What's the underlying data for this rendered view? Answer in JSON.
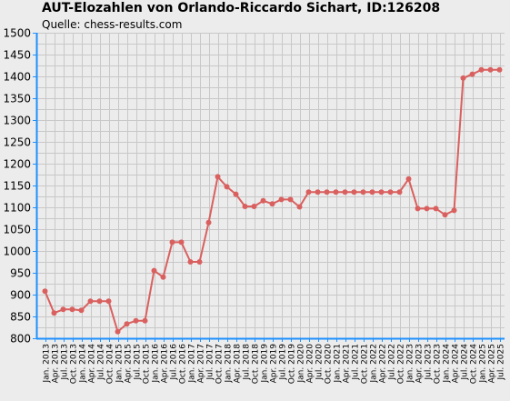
{
  "chart_data": {
    "type": "line",
    "title": "AUT-Elozahlen von Orlando-Riccardo Sichart, ID:126208",
    "subtitle": "Quelle: chess-results.com",
    "xlabel": "",
    "ylabel": "",
    "ylim": [
      800,
      1500
    ],
    "y_ticks": [
      800,
      850,
      900,
      950,
      1000,
      1050,
      1100,
      1150,
      1200,
      1250,
      1300,
      1350,
      1400,
      1450,
      1500
    ],
    "x_labels": [
      "Jan. 2013",
      "Apr. 2013",
      "Jul. 2013",
      "Oct. 2013",
      "Jan. 2014",
      "Apr. 2014",
      "Jul. 2014",
      "Oct. 2014",
      "Jan. 2015",
      "Apr. 2015",
      "Jul. 2015",
      "Oct. 2015",
      "Jan. 2016",
      "Apr. 2016",
      "Jul. 2016",
      "Oct. 2016",
      "Jan. 2017",
      "Apr. 2017",
      "Jul. 2017",
      "Oct. 2017",
      "Jan. 2018",
      "Apr. 2018",
      "Jul. 2018",
      "Oct. 2018",
      "Jan. 2019",
      "Apr. 2019",
      "Jul. 2019",
      "Oct. 2019",
      "Jan. 2020",
      "Apr. 2020",
      "Jul. 2020",
      "Oct. 2020",
      "Jan. 2021",
      "Apr. 2021",
      "Jul. 2021",
      "Oct. 2021",
      "Jan. 2022",
      "Apr. 2022",
      "Jul. 2022",
      "Oct. 2022",
      "Jan. 2023",
      "Apr. 2023",
      "Jul. 2023",
      "Oct. 2023",
      "Jan. 2024",
      "Apr. 2024",
      "Jul. 2024",
      "Oct. 2024",
      "Jan. 2025",
      "Apr. 2025",
      "Jul. 2025"
    ],
    "grid": true,
    "line_color": "#d9605f",
    "axis_color": "#1e90ff",
    "series": [
      {
        "values": [
          908,
          858,
          866,
          866,
          864,
          885,
          885,
          885,
          815,
          833,
          840,
          840,
          955,
          940,
          1020,
          1020,
          975,
          975,
          1065,
          1170,
          1147,
          1130,
          1102,
          1102,
          1115,
          1108,
          1118,
          1118,
          1101,
          1135,
          1135,
          1135,
          1135,
          1135,
          1135,
          1135,
          1135,
          1135,
          1135,
          1135,
          1165,
          1097,
          1097,
          1097,
          1083,
          1093,
          1396,
          1405,
          1415,
          1415,
          1415
        ]
      }
    ]
  }
}
